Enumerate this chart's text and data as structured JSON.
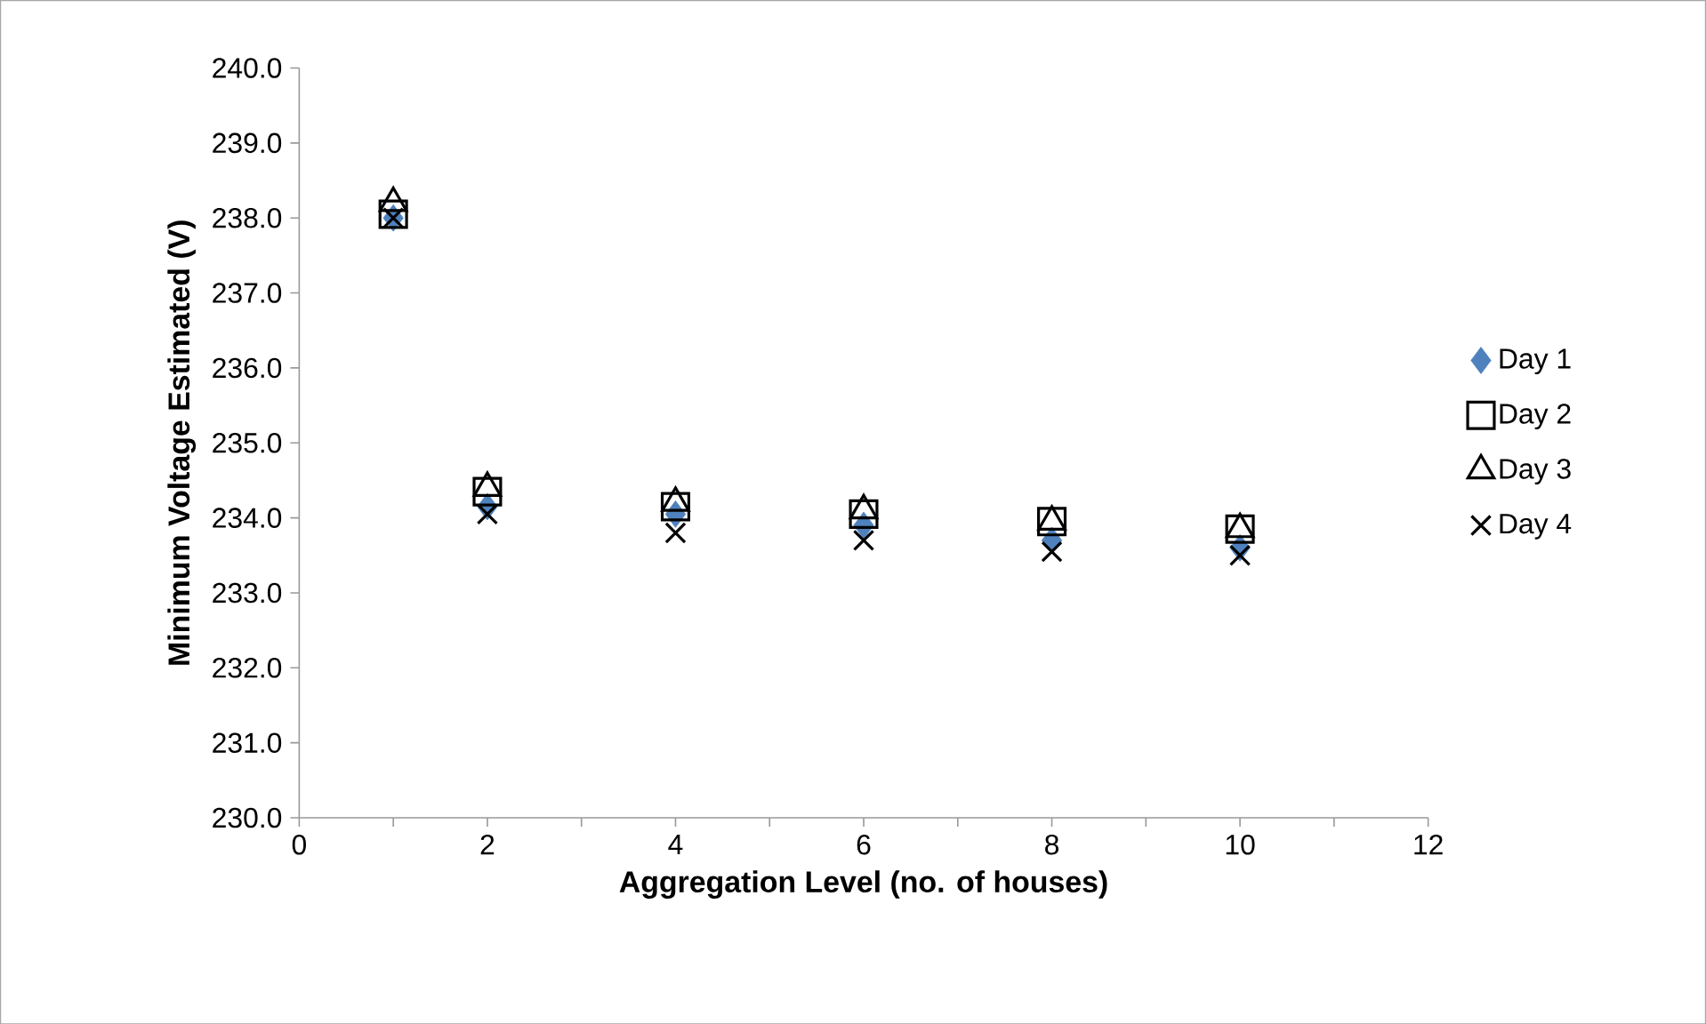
{
  "chart_data": {
    "type": "scatter",
    "xlabel": "Aggregation Level (no. of houses)",
    "ylabel": "Minimum Voltage Estimated (V)",
    "x": [
      1,
      2,
      4,
      6,
      8,
      10
    ],
    "series": [
      {
        "name": "Day 1",
        "color": "#4f81bd",
        "marker": "diamond",
        "values": [
          238.0,
          234.15,
          234.05,
          233.9,
          233.7,
          233.6
        ]
      },
      {
        "name": "Day 2",
        "color": "#000000",
        "marker": "square",
        "values": [
          238.05,
          234.35,
          234.15,
          234.05,
          233.95,
          233.85
        ]
      },
      {
        "name": "Day 3",
        "color": "#000000",
        "marker": "triangle",
        "values": [
          238.2,
          234.4,
          234.2,
          234.1,
          233.95,
          233.85
        ]
      },
      {
        "name": "Day 4",
        "color": "#000000",
        "marker": "cross",
        "values": [
          238.0,
          234.05,
          233.8,
          233.7,
          233.55,
          233.5
        ]
      }
    ],
    "xlim": [
      0,
      12
    ],
    "xticks": [
      0,
      2,
      4,
      6,
      8,
      10,
      12
    ],
    "ylim": [
      230,
      240
    ],
    "yticks": [
      {
        "value": 230,
        "label": "230.0"
      },
      {
        "value": 231,
        "label": "231.0"
      },
      {
        "value": 232,
        "label": "232.0"
      },
      {
        "value": 233,
        "label": "233.0"
      },
      {
        "value": 234,
        "label": "234.0"
      },
      {
        "value": 235,
        "label": "235.0"
      },
      {
        "value": 236,
        "label": "236.0"
      },
      {
        "value": 237,
        "label": "237.0"
      },
      {
        "value": 238,
        "label": "238.0"
      },
      {
        "value": 239,
        "label": "239.0"
      },
      {
        "value": 240,
        "label": "240.0"
      }
    ],
    "grid": false,
    "legend": "right"
  }
}
